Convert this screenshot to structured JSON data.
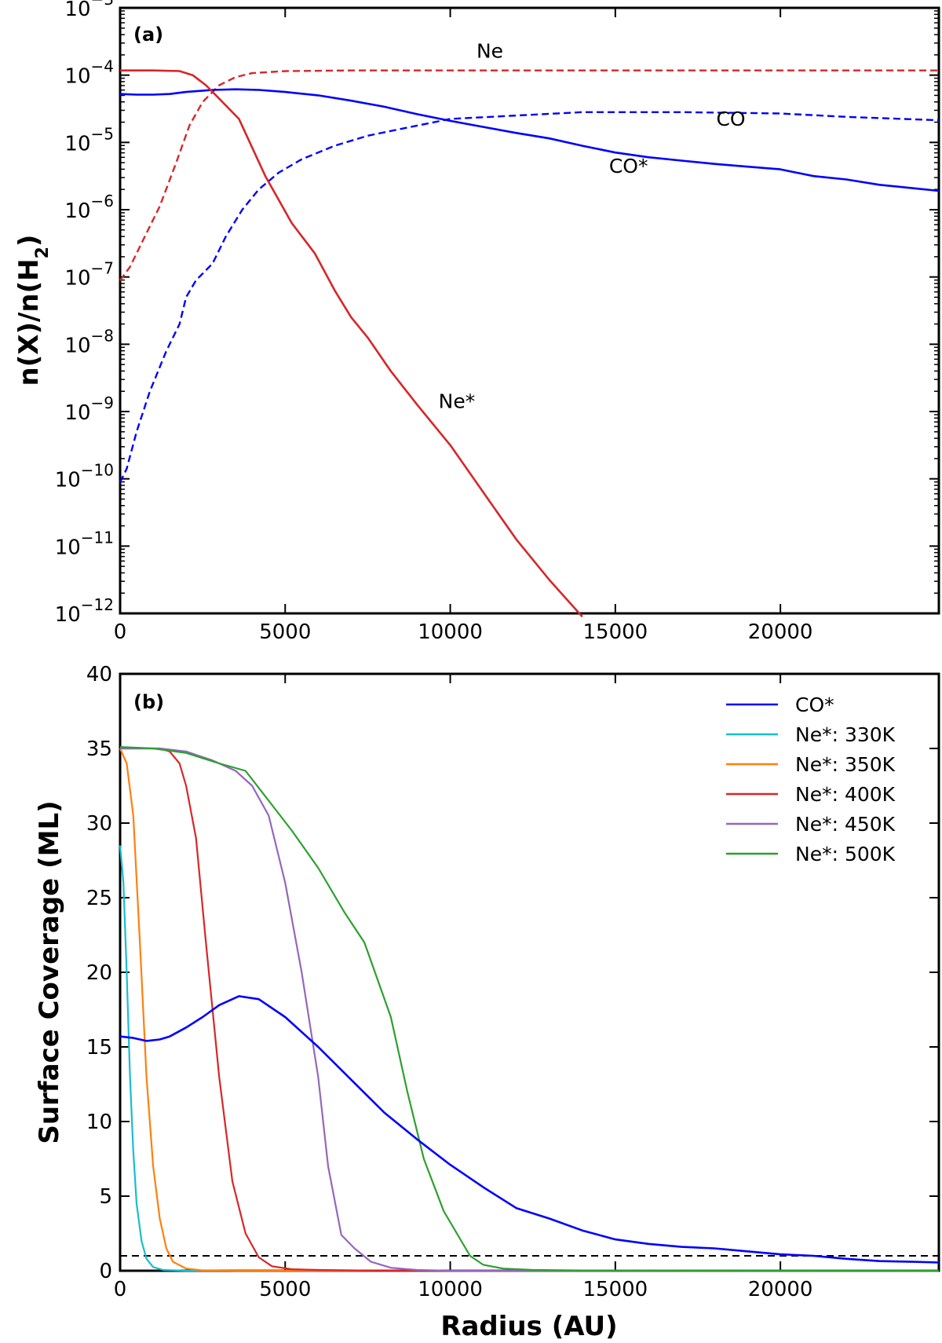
{
  "chart_data": [
    {
      "id": "a",
      "type": "line",
      "panel_label": "(a)",
      "ylabel": "n(X)/n(H2)",
      "ylabel_parts": {
        "pre": "n(X)/n(H",
        "sub": "2",
        "post": ")"
      },
      "yscale": "log",
      "xlim": [
        0,
        24800
      ],
      "ylim_exp": [
        -12,
        -3
      ],
      "xticks": [
        0,
        5000,
        10000,
        15000,
        20000
      ],
      "yticks": [
        {
          "exp": -12,
          "base": "10",
          "sup": "−12"
        },
        {
          "exp": -11,
          "base": "10",
          "sup": "−11"
        },
        {
          "exp": -10,
          "base": "10",
          "sup": "−10"
        },
        {
          "exp": -9,
          "base": "10",
          "sup": "−9"
        },
        {
          "exp": -8,
          "base": "10",
          "sup": "−8"
        },
        {
          "exp": -7,
          "base": "10",
          "sup": "−7"
        },
        {
          "exp": -6,
          "base": "10",
          "sup": "−6"
        },
        {
          "exp": -5,
          "base": "10",
          "sup": "−5"
        },
        {
          "exp": -4,
          "base": "10",
          "sup": "−4"
        },
        {
          "exp": -3,
          "base": "10",
          "sup": "−3"
        }
      ],
      "series": [
        {
          "name": "Ne",
          "color": "#d62728",
          "dash": true,
          "points": [
            [
              0,
              -7.05
            ],
            [
              300,
              -6.85
            ],
            [
              700,
              -6.45
            ],
            [
              1200,
              -5.95
            ],
            [
              1700,
              -5.3
            ],
            [
              2100,
              -4.75
            ],
            [
              2500,
              -4.4
            ],
            [
              3000,
              -4.15
            ],
            [
              3500,
              -4.03
            ],
            [
              4000,
              -3.97
            ],
            [
              5000,
              -3.94
            ],
            [
              7000,
              -3.93
            ],
            [
              15000,
              -3.93
            ],
            [
              24800,
              -3.93
            ]
          ]
        },
        {
          "name": "CO",
          "color": "#0000ff",
          "dash": true,
          "points": [
            [
              0,
              -10.05
            ],
            [
              200,
              -9.85
            ],
            [
              500,
              -9.3
            ],
            [
              900,
              -8.7
            ],
            [
              1400,
              -8.1
            ],
            [
              1800,
              -7.7
            ],
            [
              2000,
              -7.3
            ],
            [
              2300,
              -7.05
            ],
            [
              2800,
              -6.8
            ],
            [
              3200,
              -6.4
            ],
            [
              3700,
              -6.0
            ],
            [
              4200,
              -5.7
            ],
            [
              4800,
              -5.45
            ],
            [
              5500,
              -5.25
            ],
            [
              6500,
              -5.05
            ],
            [
              7500,
              -4.9
            ],
            [
              8500,
              -4.8
            ],
            [
              10000,
              -4.65
            ],
            [
              12000,
              -4.6
            ],
            [
              14000,
              -4.55
            ],
            [
              17000,
              -4.55
            ],
            [
              20000,
              -4.57
            ],
            [
              22000,
              -4.62
            ],
            [
              24800,
              -4.67
            ]
          ]
        },
        {
          "name": "CO*",
          "color": "#0000ff",
          "dash": false,
          "points": [
            [
              0,
              -4.28
            ],
            [
              500,
              -4.29
            ],
            [
              1000,
              -4.29
            ],
            [
              1500,
              -4.28
            ],
            [
              2000,
              -4.25
            ],
            [
              2800,
              -4.22
            ],
            [
              3500,
              -4.21
            ],
            [
              4200,
              -4.22
            ],
            [
              5000,
              -4.25
            ],
            [
              6000,
              -4.3
            ],
            [
              7000,
              -4.38
            ],
            [
              8000,
              -4.47
            ],
            [
              9000,
              -4.58
            ],
            [
              10000,
              -4.68
            ],
            [
              11000,
              -4.77
            ],
            [
              12000,
              -4.86
            ],
            [
              13000,
              -4.94
            ],
            [
              14000,
              -5.05
            ],
            [
              15000,
              -5.15
            ],
            [
              16000,
              -5.22
            ],
            [
              17000,
              -5.27
            ],
            [
              18000,
              -5.32
            ],
            [
              19000,
              -5.36
            ],
            [
              20000,
              -5.4
            ],
            [
              21000,
              -5.5
            ],
            [
              22000,
              -5.55
            ],
            [
              23000,
              -5.63
            ],
            [
              24000,
              -5.68
            ],
            [
              24800,
              -5.72
            ]
          ]
        },
        {
          "name": "Ne*",
          "color": "#d62728",
          "dash": false,
          "points": [
            [
              0,
              -3.93
            ],
            [
              1000,
              -3.93
            ],
            [
              1800,
              -3.94
            ],
            [
              2200,
              -4.0
            ],
            [
              2600,
              -4.15
            ],
            [
              3000,
              -4.35
            ],
            [
              3600,
              -4.65
            ],
            [
              4400,
              -5.5
            ],
            [
              5200,
              -6.2
            ],
            [
              5900,
              -6.65
            ],
            [
              6500,
              -7.2
            ],
            [
              7000,
              -7.6
            ],
            [
              7500,
              -7.9
            ],
            [
              8200,
              -8.4
            ],
            [
              9000,
              -8.9
            ],
            [
              10000,
              -9.5
            ],
            [
              11000,
              -10.2
            ],
            [
              12000,
              -10.9
            ],
            [
              13000,
              -11.5
            ],
            [
              14000,
              -12.05
            ]
          ]
        }
      ],
      "annotations": [
        {
          "text": "Ne",
          "x": 11200,
          "y_exp": -3.74
        },
        {
          "text": "CO",
          "x": 18500,
          "y_exp": -4.75
        },
        {
          "text": "CO*",
          "x": 15400,
          "y_exp": -5.45
        },
        {
          "text": "Ne*",
          "x": 10200,
          "y_exp": -8.95
        }
      ]
    },
    {
      "id": "b",
      "type": "line",
      "panel_label": "(b)",
      "xlabel": "Radius (AU)",
      "ylabel": "Surface Coverage (ML)",
      "xlim": [
        0,
        24800
      ],
      "ylim": [
        0,
        40
      ],
      "xticks": [
        0,
        5000,
        10000,
        15000,
        20000
      ],
      "yticks": [
        0,
        5,
        10,
        15,
        20,
        25,
        30,
        35,
        40
      ],
      "reference_line": {
        "y": 1,
        "color": "#000000",
        "dash": true
      },
      "legend_position": "top-right",
      "series": [
        {
          "name": "CO*",
          "color": "#0000ff",
          "points": [
            [
              0,
              15.7
            ],
            [
              400,
              15.6
            ],
            [
              800,
              15.4
            ],
            [
              1200,
              15.5
            ],
            [
              1500,
              15.7
            ],
            [
              2000,
              16.3
            ],
            [
              2500,
              17.0
            ],
            [
              3000,
              17.8
            ],
            [
              3600,
              18.4
            ],
            [
              4200,
              18.2
            ],
            [
              5000,
              17.0
            ],
            [
              6000,
              15.0
            ],
            [
              7000,
              12.8
            ],
            [
              8000,
              10.6
            ],
            [
              9000,
              8.8
            ],
            [
              10000,
              7.1
            ],
            [
              11000,
              5.6
            ],
            [
              12000,
              4.2
            ],
            [
              13000,
              3.5
            ],
            [
              14000,
              2.7
            ],
            [
              15000,
              2.1
            ],
            [
              16000,
              1.8
            ],
            [
              17000,
              1.6
            ],
            [
              18000,
              1.5
            ],
            [
              19000,
              1.3
            ],
            [
              20000,
              1.1
            ],
            [
              21000,
              1.0
            ],
            [
              22000,
              0.8
            ],
            [
              23000,
              0.65
            ],
            [
              24000,
              0.6
            ],
            [
              24800,
              0.55
            ]
          ]
        },
        {
          "name": "Ne*: 330K",
          "color": "#17becf",
          "points": [
            [
              0,
              28.5
            ],
            [
              100,
              26
            ],
            [
              200,
              20
            ],
            [
              300,
              13
            ],
            [
              400,
              8
            ],
            [
              500,
              4.5
            ],
            [
              650,
              2.0
            ],
            [
              800,
              0.8
            ],
            [
              1000,
              0.25
            ],
            [
              1300,
              0.05
            ],
            [
              2000,
              0.0
            ],
            [
              24800,
              0.0
            ]
          ]
        },
        {
          "name": "Ne*: 350K",
          "color": "#ff7f0e",
          "points": [
            [
              0,
              35.0
            ],
            [
              200,
              34.0
            ],
            [
              400,
              30.5
            ],
            [
              600,
              22
            ],
            [
              800,
              13
            ],
            [
              1000,
              7
            ],
            [
              1200,
              3.5
            ],
            [
              1400,
              1.5
            ],
            [
              1600,
              0.6
            ],
            [
              2000,
              0.15
            ],
            [
              2500,
              0.02
            ],
            [
              3500,
              0.0
            ],
            [
              24800,
              0.0
            ]
          ]
        },
        {
          "name": "Ne*: 400K",
          "color": "#d62728",
          "points": [
            [
              0,
              35.0
            ],
            [
              1200,
              35.0
            ],
            [
              1500,
              34.8
            ],
            [
              1800,
              34.0
            ],
            [
              2000,
              32.5
            ],
            [
              2300,
              29
            ],
            [
              2600,
              22
            ],
            [
              3000,
              13
            ],
            [
              3400,
              6
            ],
            [
              3800,
              2.5
            ],
            [
              4200,
              0.9
            ],
            [
              4600,
              0.3
            ],
            [
              5200,
              0.1
            ],
            [
              6000,
              0.05
            ],
            [
              8000,
              0.0
            ],
            [
              24800,
              0.0
            ]
          ]
        },
        {
          "name": "Ne*: 450K",
          "color": "#9467bd",
          "points": [
            [
              0,
              35.0
            ],
            [
              1200,
              35.0
            ],
            [
              2000,
              34.8
            ],
            [
              2800,
              34.2
            ],
            [
              3500,
              33.5
            ],
            [
              4000,
              32.5
            ],
            [
              4500,
              30.5
            ],
            [
              5000,
              26
            ],
            [
              5500,
              20
            ],
            [
              6000,
              13
            ],
            [
              6300,
              7
            ],
            [
              6700,
              2.4
            ],
            [
              7100,
              1.5
            ],
            [
              7600,
              0.6
            ],
            [
              8200,
              0.2
            ],
            [
              9000,
              0.05
            ],
            [
              10000,
              0.0
            ],
            [
              24800,
              0.0
            ]
          ]
        },
        {
          "name": "Ne*: 500K",
          "color": "#2ca02c",
          "points": [
            [
              0,
              35.1
            ],
            [
              1000,
              35.0
            ],
            [
              2000,
              34.7
            ],
            [
              3000,
              34.0
            ],
            [
              3800,
              33.5
            ],
            [
              4500,
              31.5
            ],
            [
              5200,
              29.5
            ],
            [
              6000,
              27
            ],
            [
              6800,
              24
            ],
            [
              7400,
              22
            ],
            [
              8200,
              17
            ],
            [
              8700,
              12
            ],
            [
              9200,
              7.5
            ],
            [
              9800,
              4
            ],
            [
              10200,
              2.5
            ],
            [
              10600,
              1.0
            ],
            [
              11000,
              0.4
            ],
            [
              11600,
              0.15
            ],
            [
              12500,
              0.05
            ],
            [
              14000,
              0.02
            ],
            [
              24800,
              0.0
            ]
          ]
        }
      ]
    }
  ]
}
